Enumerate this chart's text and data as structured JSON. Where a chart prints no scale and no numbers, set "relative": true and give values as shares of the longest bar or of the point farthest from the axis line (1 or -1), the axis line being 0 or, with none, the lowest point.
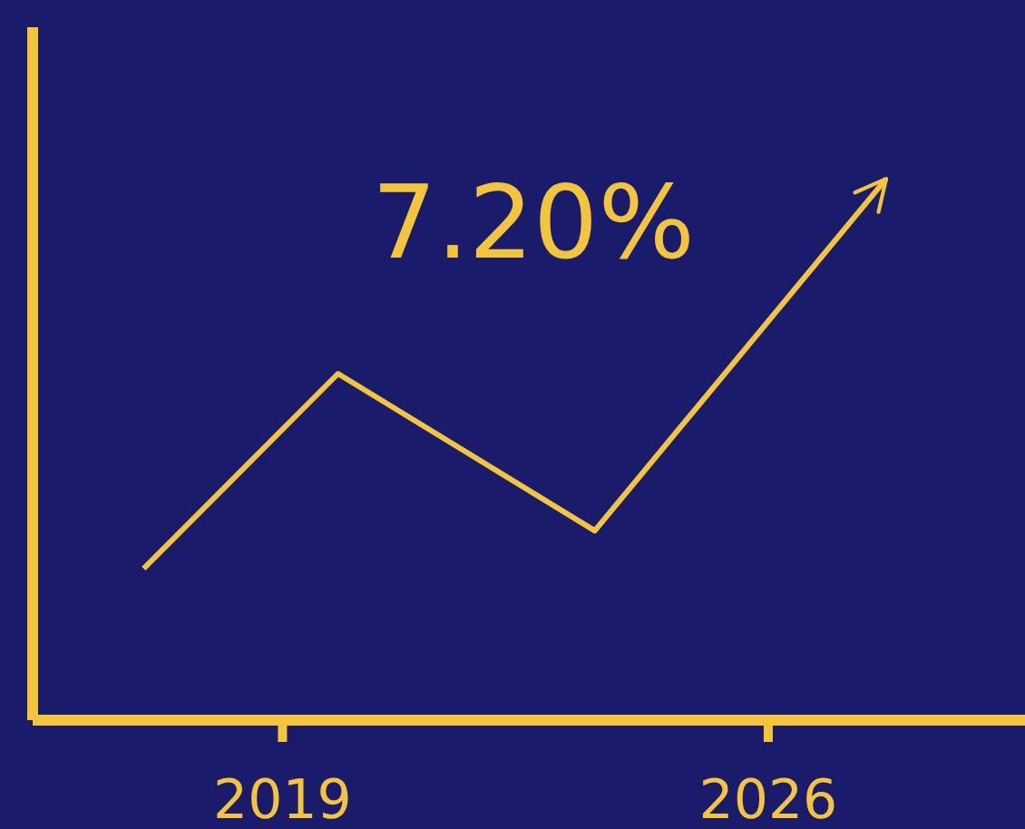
{
  "chart_data": {
    "type": "line",
    "relative": true,
    "x": [
      2017,
      2019.8,
      2023.5,
      2027.7
    ],
    "xlim": [
      2015.4,
      2029.7
    ],
    "xticks": [
      2019,
      2026
    ],
    "series": [
      {
        "color": "#f2c53d",
        "values": [
          0.28,
          0.64,
          0.35,
          1
        ]
      }
    ],
    "annotations": [
      "7.20%"
    ],
    "marker": "none"
  }
}
